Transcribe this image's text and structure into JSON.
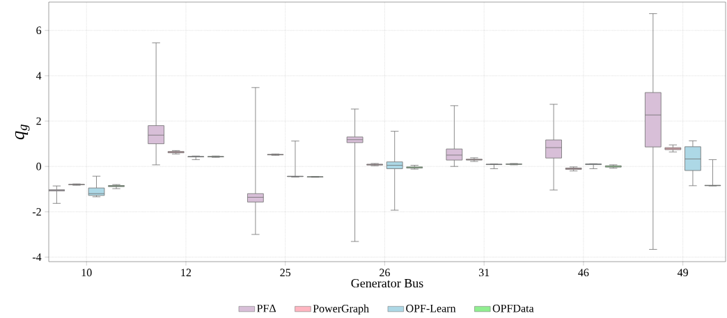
{
  "chart_data": {
    "type": "box",
    "xlabel": "Generator Bus",
    "ylabel": "q$_{g}$",
    "categories": [
      "10",
      "12",
      "25",
      "26",
      "31",
      "46",
      "49"
    ],
    "ylim": [
      -4.2,
      7.25
    ],
    "yticks": [
      -4,
      -2,
      0,
      2,
      4,
      6
    ],
    "grid": true,
    "legend": "bottom",
    "series": [
      {
        "name": "PFΔ",
        "color": "#d8bfd8",
        "boxes": [
          {
            "low": -1.63,
            "q1": -1.08,
            "median": -1.05,
            "q3": -1.03,
            "high": -0.86
          },
          {
            "low": 0.07,
            "q1": 1.0,
            "median": 1.38,
            "q3": 1.8,
            "high": 5.45
          },
          {
            "low": -3.0,
            "q1": -1.57,
            "median": -1.36,
            "q3": -1.2,
            "high": 3.48
          },
          {
            "low": -3.31,
            "q1": 1.05,
            "median": 1.18,
            "q3": 1.3,
            "high": 2.53
          },
          {
            "low": 0.0,
            "q1": 0.28,
            "median": 0.5,
            "q3": 0.77,
            "high": 2.68
          },
          {
            "low": -1.04,
            "q1": 0.37,
            "median": 0.83,
            "q3": 1.17,
            "high": 2.74
          },
          {
            "low": -3.66,
            "q1": 0.86,
            "median": 2.27,
            "q3": 3.26,
            "high": 6.74
          }
        ]
      },
      {
        "name": "PowerGraph",
        "color": "#ffb6c1",
        "boxes": [
          {
            "low": -0.83,
            "q1": -0.81,
            "median": -0.8,
            "q3": -0.79,
            "high": -0.77
          },
          {
            "low": 0.55,
            "q1": 0.6,
            "median": 0.63,
            "q3": 0.66,
            "high": 0.7
          },
          {
            "low": 0.49,
            "q1": 0.51,
            "median": 0.52,
            "q3": 0.53,
            "high": 0.55
          },
          {
            "low": 0.03,
            "q1": 0.06,
            "median": 0.08,
            "q3": 0.1,
            "high": 0.13
          },
          {
            "low": 0.22,
            "q1": 0.28,
            "median": 0.3,
            "q3": 0.32,
            "high": 0.38
          },
          {
            "low": -0.2,
            "q1": -0.13,
            "median": -0.1,
            "q3": -0.07,
            "high": -0.02
          },
          {
            "low": 0.64,
            "q1": 0.74,
            "median": 0.78,
            "q3": 0.83,
            "high": 0.95
          }
        ]
      },
      {
        "name": "OPF-Learn",
        "color": "#add8e6",
        "boxes": [
          {
            "low": -1.34,
            "q1": -1.28,
            "median": -1.2,
            "q3": -0.95,
            "high": -0.43
          },
          {
            "low": 0.3,
            "q1": 0.42,
            "median": 0.43,
            "q3": 0.44,
            "high": 0.46
          },
          {
            "low": -0.47,
            "q1": -0.45,
            "median": -0.44,
            "q3": -0.43,
            "high": 1.12
          },
          {
            "low": -1.93,
            "q1": -0.1,
            "median": 0.05,
            "q3": 0.2,
            "high": 1.55
          },
          {
            "low": -0.1,
            "q1": 0.08,
            "median": 0.09,
            "q3": 0.1,
            "high": 0.11
          },
          {
            "low": -0.1,
            "q1": 0.08,
            "median": 0.1,
            "q3": 0.11,
            "high": 0.12
          },
          {
            "low": -0.85,
            "q1": -0.18,
            "median": 0.33,
            "q3": 0.87,
            "high": 1.13
          }
        ]
      },
      {
        "name": "OPFData",
        "color": "#90ee90",
        "boxes": [
          {
            "low": -0.98,
            "q1": -0.89,
            "median": -0.87,
            "q3": -0.84,
            "high": -0.8
          },
          {
            "low": 0.4,
            "q1": 0.42,
            "median": 0.43,
            "q3": 0.44,
            "high": 0.46
          },
          {
            "low": -0.48,
            "q1": -0.47,
            "median": -0.46,
            "q3": -0.45,
            "high": -0.44
          },
          {
            "low": -0.12,
            "q1": -0.07,
            "median": -0.05,
            "q3": -0.02,
            "high": 0.05
          },
          {
            "low": 0.07,
            "q1": 0.09,
            "median": 0.1,
            "q3": 0.11,
            "high": 0.13
          },
          {
            "low": -0.08,
            "q1": -0.03,
            "median": 0.0,
            "q3": 0.03,
            "high": 0.07
          },
          {
            "low": -0.86,
            "q1": -0.85,
            "median": -0.84,
            "q3": -0.83,
            "high": 0.3
          }
        ]
      }
    ]
  }
}
